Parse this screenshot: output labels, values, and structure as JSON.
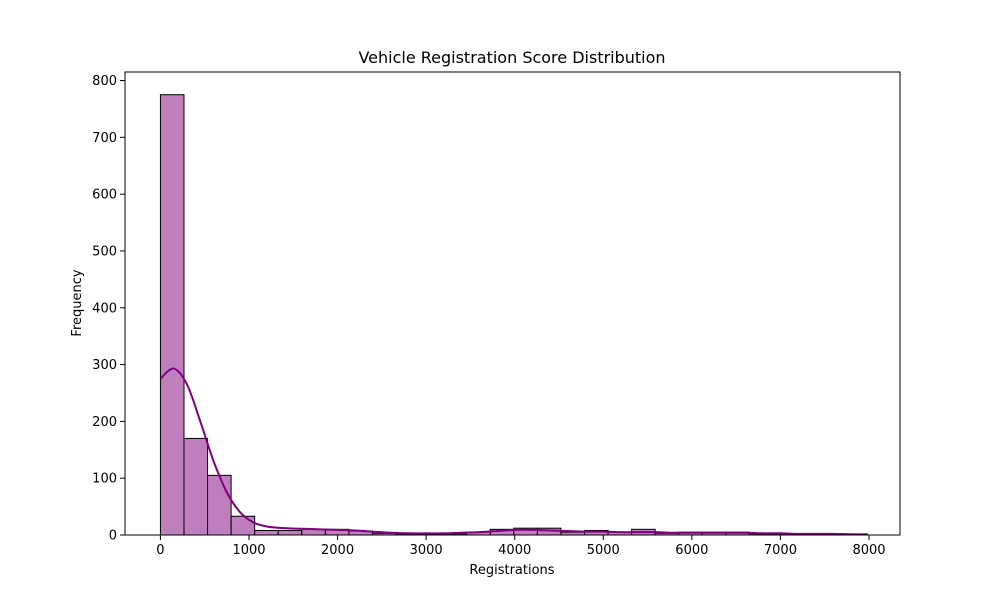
{
  "chart_data": {
    "type": "bar",
    "title": "Vehicle Registration Score Distribution",
    "xlabel": "Registrations",
    "ylabel": "Frequency",
    "xlim": [
      -400,
      8350
    ],
    "ylim": [
      0,
      815
    ],
    "xticks": [
      0,
      1000,
      2000,
      3000,
      4000,
      5000,
      6000,
      7000,
      8000
    ],
    "yticks": [
      0,
      100,
      200,
      300,
      400,
      500,
      600,
      700,
      800
    ],
    "bin_start": 0,
    "bin_width": 266,
    "values": [
      775,
      170,
      105,
      33,
      8,
      8,
      10,
      10,
      7,
      3,
      2,
      2,
      2,
      5,
      10,
      12,
      12,
      5,
      8,
      5,
      10,
      3,
      5,
      5,
      5,
      2,
      2,
      2,
      2,
      2
    ],
    "kde": {
      "x": [
        0,
        150,
        300,
        450,
        600,
        750,
        900,
        1050,
        1200,
        1400,
        1600,
        1800,
        2000,
        2200,
        2400,
        2600,
        2800,
        3000,
        3200,
        3400,
        3600,
        3800,
        4000,
        4200,
        4400,
        4600,
        4800,
        5000,
        5200,
        5400,
        5600,
        5800,
        6000,
        6200,
        6400,
        6600,
        6800,
        7000,
        7200,
        7400,
        7600,
        7800,
        7950
      ],
      "y": [
        275,
        293,
        265,
        200,
        130,
        75,
        40,
        22,
        15,
        12,
        11,
        10,
        9,
        8,
        6,
        4,
        3,
        3,
        3,
        4,
        5,
        7,
        9,
        9,
        8,
        7,
        6,
        6,
        5,
        5,
        5,
        4,
        4,
        4,
        4,
        4,
        3,
        3,
        2,
        2,
        2,
        1,
        1
      ]
    },
    "colors": {
      "bar_fill": "#bf7fbf",
      "bar_edge": "#000000",
      "kde_line": "#800080"
    },
    "grid": false,
    "legend": "none"
  }
}
